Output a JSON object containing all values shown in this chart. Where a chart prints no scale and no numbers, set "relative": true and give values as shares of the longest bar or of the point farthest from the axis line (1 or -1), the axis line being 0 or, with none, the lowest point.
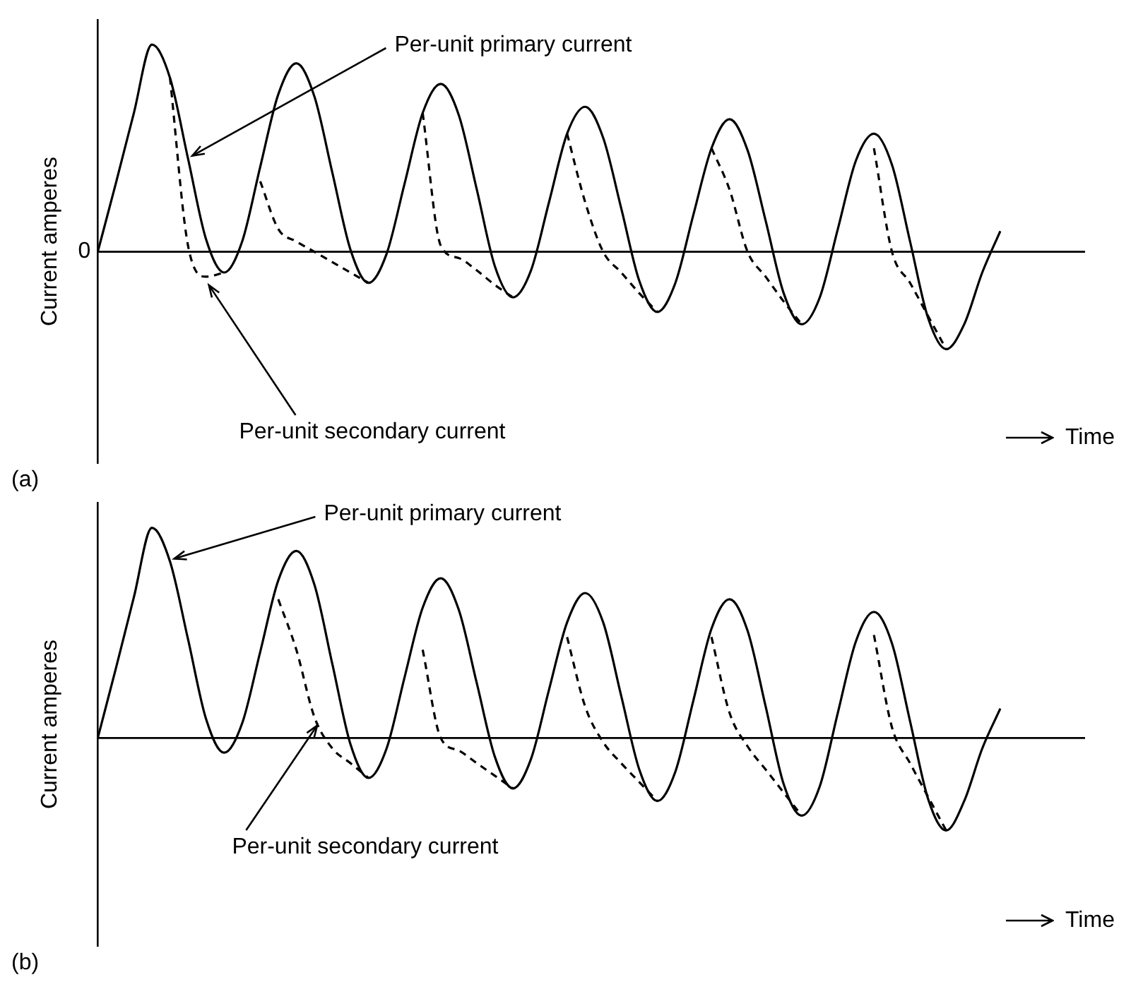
{
  "chart_data": [
    {
      "type": "line",
      "title": "(a)",
      "xlabel": "Time",
      "ylabel": "Current amperes",
      "relative": true,
      "legend": false,
      "categories": [
        null,
        null,
        null,
        null,
        null,
        null,
        null,
        null,
        null,
        null,
        null,
        null,
        null,
        null,
        null,
        null,
        null,
        null,
        null,
        null,
        null,
        null,
        null,
        null,
        null,
        null,
        null,
        null,
        null,
        null,
        null,
        null,
        null,
        null,
        null,
        null,
        null,
        null,
        null,
        null,
        null,
        null,
        null,
        null,
        null,
        null,
        null,
        null,
        null,
        null,
        null
      ],
      "series": [
        {
          "name": "Per-unit primary current",
          "color": "#000000",
          "line_style": "solid",
          "values": [
            0,
            0.33,
            0.67,
            1.0,
            0.84,
            0.45,
            0.06,
            -0.1,
            0.05,
            0.41,
            0.76,
            0.91,
            0.75,
            0.38,
            0.01,
            -0.15,
            -0.01,
            0.33,
            0.67,
            0.81,
            0.66,
            0.3,
            -0.07,
            -0.22,
            -0.09,
            0.24,
            0.57,
            0.7,
            0.55,
            0.21,
            -0.14,
            -0.29,
            -0.15,
            0.18,
            0.5,
            0.64,
            0.49,
            0.15,
            -0.2,
            -0.35,
            -0.22,
            0.11,
            0.44,
            0.57,
            0.42,
            0.05,
            -0.32,
            -0.47,
            -0.35,
            -0.1,
            0.1
          ]
        },
        {
          "name": "Per-unit secondary current",
          "color": "#000000",
          "line_style": "dashed",
          "values": [
            null,
            null,
            null,
            null,
            0.84,
            0.03,
            -0.12,
            -0.1,
            null,
            0.34,
            0.11,
            0.05,
            0.0,
            -0.05,
            -0.1,
            -0.15,
            null,
            null,
            0.67,
            0.03,
            -0.03,
            -0.09,
            -0.16,
            -0.22,
            null,
            null,
            0.57,
            0.24,
            0.0,
            -0.1,
            -0.2,
            -0.29,
            null,
            null,
            0.5,
            0.3,
            0.0,
            -0.12,
            -0.24,
            -0.35,
            null,
            null,
            null,
            0.5,
            0.0,
            -0.15,
            -0.31,
            -0.47,
            null,
            null,
            null
          ]
        }
      ],
      "ref_lines": [
        {
          "axis": "y",
          "value": 0,
          "label": "0"
        }
      ]
    },
    {
      "type": "line",
      "title": "(b)",
      "xlabel": "Time",
      "ylabel": "Current amperes",
      "relative": true,
      "legend": false,
      "categories": [
        null,
        null,
        null,
        null,
        null,
        null,
        null,
        null,
        null,
        null,
        null,
        null,
        null,
        null,
        null,
        null,
        null,
        null,
        null,
        null,
        null,
        null,
        null,
        null,
        null,
        null,
        null,
        null,
        null,
        null,
        null,
        null,
        null,
        null,
        null,
        null,
        null,
        null,
        null,
        null,
        null,
        null,
        null,
        null,
        null,
        null,
        null,
        null,
        null,
        null,
        null
      ],
      "series": [
        {
          "name": "Per-unit primary current",
          "color": "#000000",
          "line_style": "solid",
          "values": [
            0,
            0.33,
            0.67,
            1.0,
            0.84,
            0.47,
            0.09,
            -0.07,
            0.07,
            0.41,
            0.75,
            0.89,
            0.73,
            0.35,
            -0.03,
            -0.19,
            -0.05,
            0.29,
            0.62,
            0.76,
            0.61,
            0.26,
            -0.09,
            -0.24,
            -0.1,
            0.23,
            0.55,
            0.69,
            0.55,
            0.2,
            -0.15,
            -0.3,
            -0.16,
            0.18,
            0.52,
            0.66,
            0.51,
            0.15,
            -0.22,
            -0.37,
            -0.23,
            0.12,
            0.46,
            0.6,
            0.45,
            0.08,
            -0.29,
            -0.44,
            -0.3,
            -0.05,
            0.14
          ]
        },
        {
          "name": "Per-unit secondary current",
          "color": "#000000",
          "line_style": "dashed",
          "values": [
            null,
            null,
            null,
            null,
            null,
            null,
            null,
            null,
            null,
            null,
            0.66,
            0.42,
            0.1,
            -0.05,
            -0.12,
            -0.19,
            null,
            null,
            0.42,
            0.0,
            -0.06,
            -0.12,
            -0.18,
            -0.24,
            null,
            null,
            0.48,
            0.15,
            -0.02,
            -0.12,
            -0.21,
            -0.3,
            null,
            null,
            0.48,
            0.12,
            -0.04,
            -0.15,
            -0.26,
            -0.37,
            null,
            null,
            null,
            0.49,
            0.05,
            -0.12,
            -0.28,
            -0.44,
            null,
            null,
            null
          ]
        }
      ],
      "ref_lines": [
        {
          "axis": "y",
          "value": 0
        }
      ]
    }
  ]
}
